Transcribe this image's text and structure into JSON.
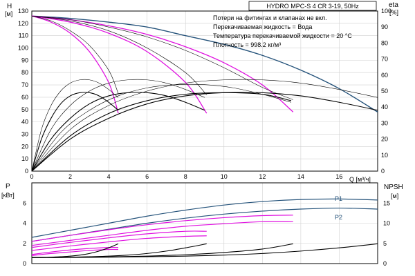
{
  "chart_data": [
    {
      "type": "line",
      "title": "HYDRO MPC-S 4 CR 3-19, 50Hz",
      "notes": [
        "Потери на фитингах и клапанах не вкл.",
        "Перекачиваемая жидкость = Вода",
        "Температура перекачиваемой жидкости = 20 °C",
        "Плотность = 998.2 кг/м³"
      ],
      "ylabel": "H",
      "yunit": "[м]",
      "y2label": "eta",
      "y2unit": "[%]",
      "xlabel": "Q [м³/ч]",
      "xlim": [
        0,
        18
      ],
      "ylim": [
        0,
        130
      ],
      "y2lim": [
        0,
        100
      ],
      "xticks": [
        0,
        2,
        4,
        6,
        8,
        10,
        12,
        14,
        16
      ],
      "yticks": [
        0,
        10,
        20,
        30,
        40,
        50,
        60,
        70,
        80,
        90,
        100,
        110,
        120,
        130
      ],
      "y2ticks": [
        0,
        10,
        20,
        30,
        40,
        50,
        60,
        70,
        80,
        90,
        100
      ],
      "grid": true,
      "series": [
        {
          "group": "head_max",
          "color": "#24527a",
          "x": [
            0,
            2,
            4,
            6,
            8,
            10,
            12,
            14,
            16,
            18
          ],
          "y": [
            126,
            124,
            121,
            117,
            110,
            103,
            94,
            82,
            67,
            48
          ]
        },
        {
          "group": "head_reduced",
          "color": "#e010e0",
          "x": [
            0,
            2,
            4,
            6,
            8,
            10,
            12,
            13.6
          ],
          "y": [
            126,
            123,
            118,
            111,
            101,
            88,
            70,
            48
          ]
        },
        {
          "group": "head_reduced",
          "color": "#e010e0",
          "x": [
            0,
            2,
            4,
            6,
            8,
            9.1
          ],
          "y": [
            126,
            121,
            112,
            97,
            72,
            47
          ]
        },
        {
          "group": "head_reduced",
          "color": "#e010e0",
          "x": [
            0,
            1,
            2,
            3,
            4,
            4.5
          ],
          "y": [
            126,
            121,
            112,
            97,
            72,
            47
          ]
        },
        {
          "group": "head_thin",
          "color": "#000000",
          "x": [
            0,
            1,
            2,
            3,
            4,
            4.5
          ],
          "y": [
            126,
            122,
            114,
            102,
            82,
            63
          ]
        },
        {
          "group": "head_thin",
          "color": "#000000",
          "x": [
            0,
            2,
            4,
            6,
            8,
            9.1
          ],
          "y": [
            126,
            122,
            114,
            100,
            80,
            62
          ]
        },
        {
          "group": "head_thin",
          "color": "#000000",
          "x": [
            0,
            2,
            4,
            6,
            8,
            10,
            12,
            13.6
          ],
          "y": [
            126,
            123,
            117,
            109,
            98,
            84,
            68,
            58
          ]
        },
        {
          "group": "eta",
          "color": "#000000",
          "x": [
            0,
            0.5,
            1,
            1.5,
            2,
            2.5,
            3,
            3.5,
            4,
            4.5
          ],
          "y": [
            0,
            20,
            33,
            42,
            47,
            49,
            49,
            47,
            43,
            38
          ]
        },
        {
          "group": "eta",
          "color": "#000000",
          "x": [
            0,
            1,
            2,
            3,
            4,
            5,
            6,
            7,
            8,
            9
          ],
          "y": [
            0,
            20,
            33,
            42,
            47,
            49,
            49,
            47,
            43,
            38
          ]
        },
        {
          "group": "eta",
          "color": "#000000",
          "x": [
            0,
            2,
            4,
            6,
            8,
            10,
            12,
            13.5
          ],
          "y": [
            0,
            22,
            36,
            44,
            48,
            49,
            48,
            44
          ]
        },
        {
          "group": "eta",
          "color": "#000000",
          "x": [
            0,
            2,
            4,
            6,
            8,
            10,
            12,
            14,
            16,
            18
          ],
          "y": [
            0,
            20,
            33,
            42,
            47,
            49,
            49,
            47,
            43,
            38
          ]
        },
        {
          "group": "eta_thin",
          "color": "#000000",
          "x": [
            0,
            0.5,
            1,
            1.5,
            2,
            2.5,
            3,
            3.5,
            4,
            4.5
          ],
          "y": [
            0,
            26,
            41,
            50,
            55,
            57,
            57,
            55,
            51,
            46
          ]
        },
        {
          "group": "eta_thin",
          "color": "#000000",
          "x": [
            0,
            1,
            2,
            3,
            4,
            5,
            6,
            7,
            8,
            9
          ],
          "y": [
            0,
            26,
            41,
            50,
            55,
            57,
            57,
            55,
            51,
            46
          ]
        },
        {
          "group": "eta_thin",
          "color": "#000000",
          "x": [
            0,
            2,
            4,
            6,
            8,
            10,
            12,
            14,
            16,
            18
          ],
          "y": [
            0,
            26,
            41,
            50,
            55,
            57,
            57,
            55,
            51,
            46
          ]
        },
        {
          "group": "eta_thin",
          "color": "#000000",
          "x": [
            0,
            1.5,
            3,
            4.5,
            6,
            7.5,
            9,
            10.5,
            12,
            13.5
          ],
          "y": [
            0,
            24,
            38,
            47,
            52,
            54,
            54,
            52,
            48,
            43
          ]
        }
      ]
    },
    {
      "type": "line",
      "ylabel": "P",
      "yunit": "[кВт]",
      "y2label": "NPSH",
      "y2unit": "[м]",
      "xlim": [
        0,
        18
      ],
      "ylim": [
        0,
        8
      ],
      "y2lim": [
        0,
        20
      ],
      "yticks": [
        0,
        2,
        4,
        6
      ],
      "y2ticks": [
        0,
        5,
        10,
        15
      ],
      "grid": true,
      "annotations": [
        "P1",
        "P2"
      ],
      "series": [
        {
          "name": "P1",
          "color": "#24527a",
          "x": [
            0,
            2,
            4,
            6,
            8,
            10,
            12,
            14,
            16,
            18
          ],
          "y": [
            2.6,
            3.3,
            4.0,
            4.7,
            5.3,
            5.8,
            6.15,
            6.35,
            6.4,
            6.3
          ]
        },
        {
          "name": "P2",
          "color": "#24527a",
          "x": [
            0,
            2,
            4,
            6,
            8,
            10,
            12,
            14,
            16,
            18
          ],
          "y": [
            2.2,
            2.8,
            3.4,
            4.0,
            4.5,
            4.9,
            5.2,
            5.4,
            5.5,
            5.4
          ]
        },
        {
          "group": "power_reduced",
          "color": "#e010e0",
          "x": [
            0,
            2,
            4,
            6,
            8,
            10,
            12,
            13.6
          ],
          "y": [
            2.2,
            2.8,
            3.35,
            3.85,
            4.25,
            4.55,
            4.75,
            4.8
          ]
        },
        {
          "group": "power_reduced",
          "color": "#e010e0",
          "x": [
            0,
            2,
            4,
            6,
            8,
            10,
            12,
            13.6
          ],
          "y": [
            1.8,
            2.3,
            2.8,
            3.3,
            3.7,
            3.95,
            4.15,
            4.15
          ]
        },
        {
          "group": "power_reduced",
          "color": "#e010e0",
          "x": [
            0,
            2,
            4,
            6,
            8,
            9.1
          ],
          "y": [
            1.6,
            2.1,
            2.55,
            2.95,
            3.2,
            3.2
          ]
        },
        {
          "group": "power_reduced",
          "color": "#e010e0",
          "x": [
            0,
            2,
            4,
            6,
            8,
            9.1
          ],
          "y": [
            1.3,
            1.75,
            2.15,
            2.5,
            2.7,
            2.75
          ]
        },
        {
          "group": "power_reduced",
          "color": "#e010e0",
          "x": [
            0,
            1,
            2,
            3,
            4,
            4.5
          ],
          "y": [
            0.9,
            1.15,
            1.35,
            1.5,
            1.6,
            1.6
          ]
        },
        {
          "group": "power_reduced",
          "color": "#e010e0",
          "x": [
            0,
            1,
            2,
            3,
            4,
            4.5
          ],
          "y": [
            0.8,
            1.0,
            1.15,
            1.3,
            1.4,
            1.4
          ]
        },
        {
          "group": "npsh",
          "color": "#000000",
          "x": [
            0,
            2,
            4,
            6,
            8,
            10,
            12,
            14,
            16,
            18
          ],
          "y": [
            1.5,
            1.52,
            1.58,
            1.7,
            1.85,
            2.1,
            2.5,
            3.1,
            3.9,
            4.9
          ]
        },
        {
          "group": "npsh",
          "color": "#000000",
          "x": [
            0,
            2,
            4,
            6,
            8,
            10,
            12,
            13.6
          ],
          "y": [
            1.5,
            1.55,
            1.65,
            1.85,
            2.2,
            2.75,
            3.6,
            4.9
          ]
        },
        {
          "group": "npsh",
          "color": "#000000",
          "x": [
            0,
            1,
            2,
            3,
            4,
            5,
            6,
            7,
            8,
            9.1
          ],
          "y": [
            1.5,
            1.52,
            1.58,
            1.7,
            1.85,
            2.1,
            2.5,
            3.1,
            3.9,
            4.9
          ]
        },
        {
          "group": "npsh",
          "color": "#000000",
          "x": [
            0,
            0.5,
            1,
            1.5,
            2,
            2.5,
            3,
            3.5,
            4,
            4.5
          ],
          "y": [
            1.5,
            1.52,
            1.58,
            1.7,
            1.85,
            2.1,
            2.5,
            3.1,
            3.9,
            4.9
          ]
        }
      ]
    }
  ]
}
